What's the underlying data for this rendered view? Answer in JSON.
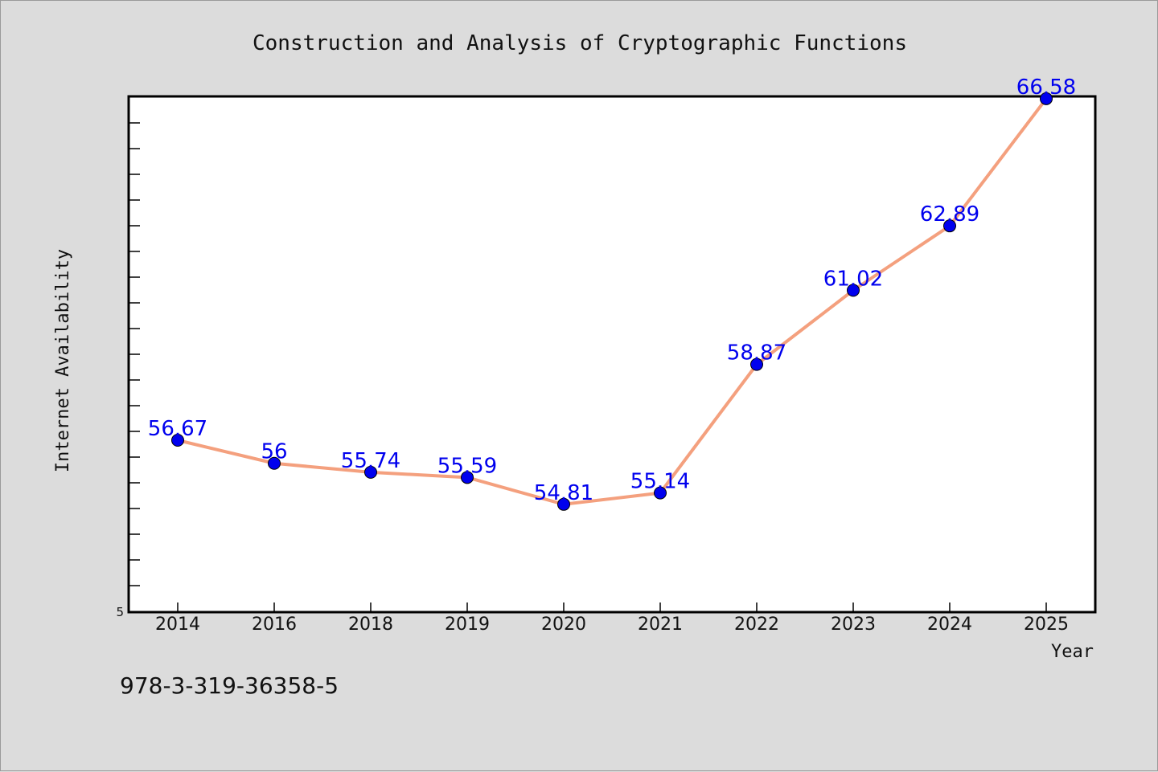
{
  "chart_data": {
    "type": "line",
    "title": "Construction and Analysis of Cryptographic Functions",
    "xlabel": "Year",
    "ylabel": "Internet Availability",
    "categories": [
      "2014",
      "2016",
      "2018",
      "2019",
      "2020",
      "2021",
      "2022",
      "2023",
      "2024",
      "2025"
    ],
    "series": [
      {
        "values": [
          56.67,
          56,
          55.74,
          55.59,
          54.81,
          55.14,
          58.87,
          61.02,
          62.89,
          66.58
        ],
        "labels": [
          "56.67",
          "56",
          "55.74",
          "55.59",
          "54.81",
          "55.14",
          "58.87",
          "61.02",
          "62.89",
          "66.58"
        ],
        "line_color": "#f4a07e",
        "marker_color": "#0000ee"
      }
    ],
    "y_tick_label": "5",
    "ylim": [
      50,
      70
    ],
    "grid": false,
    "legend": "none",
    "footnote": "978-3-319-36358-5"
  }
}
